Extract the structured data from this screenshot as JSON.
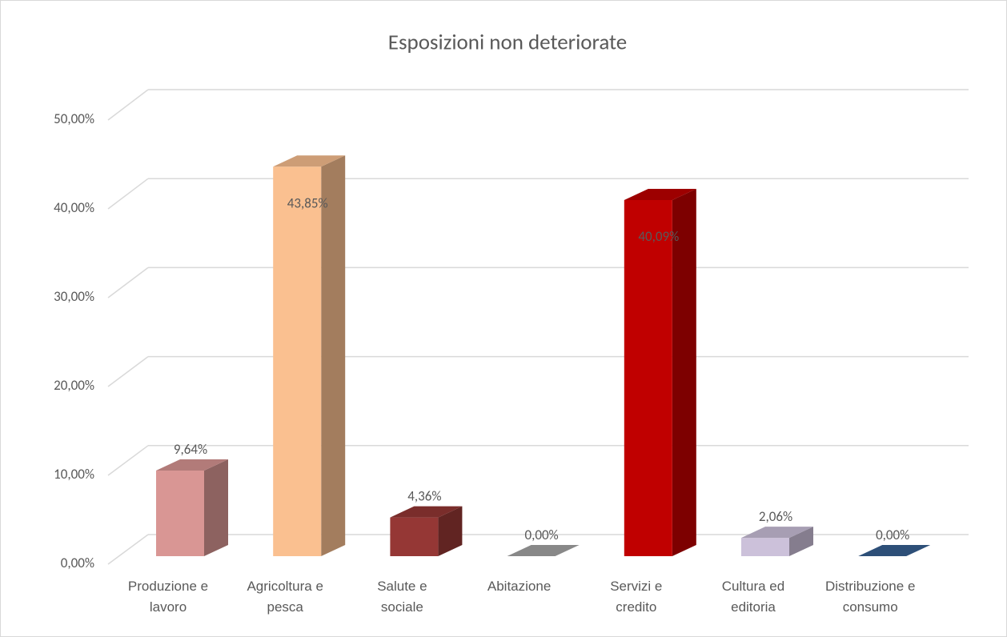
{
  "chart_data": {
    "type": "bar",
    "title": "Esposizioni non deteriorate",
    "categories": [
      "Produzione e lavoro",
      "Agricoltura e pesca",
      "Salute e sociale",
      "Abitazione",
      "Servizi e credito",
      "Cultura ed editoria",
      "Distribuzione e consumo"
    ],
    "values": [
      9.64,
      43.85,
      4.36,
      0,
      40.09,
      2.06,
      0
    ],
    "value_labels": [
      "9,64%",
      "43,85%",
      "4,36%",
      "0,00%",
      "40,09%",
      "2,06%",
      "0,00%"
    ],
    "colors": [
      "#d99694",
      "#fac090",
      "#953735",
      "#a6a6a6",
      "#c00000",
      "#ccc1da",
      "#376092"
    ],
    "ylim": [
      0,
      50
    ],
    "yticks": [
      {
        "value": 0,
        "label": "0,00%"
      },
      {
        "value": 10,
        "label": "10,00%"
      },
      {
        "value": 20,
        "label": "20,00%"
      },
      {
        "value": 30,
        "label": "30,00%"
      },
      {
        "value": 40,
        "label": "40,00%"
      },
      {
        "value": 50,
        "label": "50,00%"
      }
    ],
    "grid": true
  }
}
